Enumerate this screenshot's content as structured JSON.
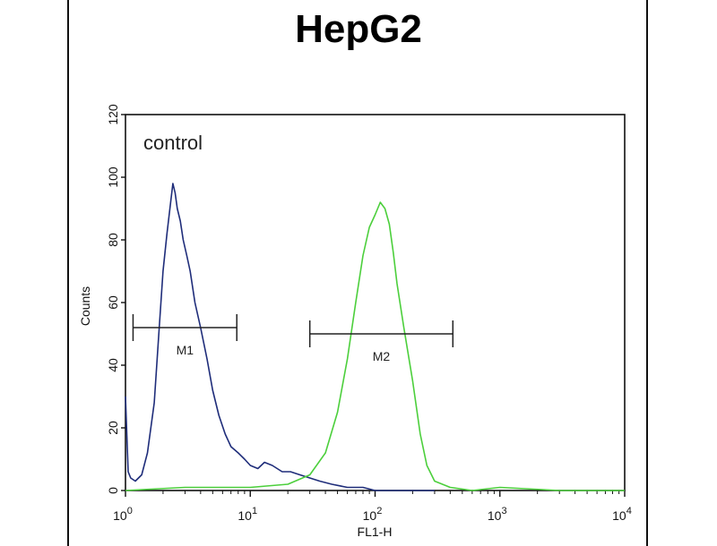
{
  "chart_data": {
    "type": "line",
    "title": "HepG2",
    "xlabel": "FL1-H",
    "ylabel": "Counts",
    "x_scale": "log",
    "xlim": [
      1,
      10000
    ],
    "ylim": [
      0,
      120
    ],
    "y_ticks": [
      0,
      20,
      40,
      60,
      80,
      100,
      120
    ],
    "x_tick_labels": [
      {
        "value": 1,
        "base": "10",
        "exp": "0"
      },
      {
        "value": 10,
        "base": "10",
        "exp": "1"
      },
      {
        "value": 100,
        "base": "10",
        "exp": "2"
      },
      {
        "value": 1000,
        "base": "10",
        "exp": "3"
      },
      {
        "value": 10000,
        "base": "10",
        "exp": "4"
      }
    ],
    "annotation": "control",
    "grid": false,
    "series": [
      {
        "color": "#1f2d7a",
        "x": [
          1.0,
          1.05,
          1.1,
          1.2,
          1.35,
          1.5,
          1.7,
          1.85,
          2.0,
          2.15,
          2.3,
          2.4,
          2.5,
          2.6,
          2.75,
          2.9,
          3.1,
          3.3,
          3.6,
          4.0,
          4.5,
          5.0,
          5.6,
          6.3,
          7.0,
          8.0,
          9.0,
          10.0,
          11.5,
          13.0,
          15.0,
          18.0,
          21.0,
          25.0,
          30.0,
          36.0,
          45.0,
          60.0,
          80.0,
          100.0,
          150.0,
          200.0,
          300.0
        ],
        "y": [
          30,
          6,
          4,
          3,
          5,
          12,
          28,
          50,
          70,
          82,
          92,
          98,
          95,
          90,
          86,
          80,
          75,
          70,
          60,
          52,
          42,
          32,
          24,
          18,
          14,
          12,
          10,
          8,
          7,
          9,
          8,
          6,
          6,
          5,
          4,
          3,
          2,
          1,
          1,
          0,
          0,
          0,
          0
        ]
      },
      {
        "color": "#4ccf3c",
        "x": [
          1.0,
          3.0,
          10.0,
          20.0,
          30.0,
          40.0,
          50.0,
          60.0,
          70.0,
          80.0,
          90.0,
          100.0,
          110.0,
          120.0,
          130.0,
          140.0,
          150.0,
          170.0,
          200.0,
          230.0,
          260.0,
          300.0,
          400.0,
          600.0,
          1000.0,
          3000.0,
          10000.0
        ],
        "y": [
          0,
          1,
          1,
          2,
          5,
          12,
          25,
          42,
          60,
          75,
          84,
          88,
          92,
          90,
          85,
          76,
          66,
          52,
          35,
          18,
          8,
          3,
          1,
          0,
          1,
          0,
          0
        ]
      }
    ],
    "markers": [
      {
        "label": "M1",
        "x_start": 1.15,
        "x_end": 7.8,
        "y": 52
      },
      {
        "label": "M2",
        "x_start": 30,
        "x_end": 420,
        "y": 50
      }
    ]
  }
}
